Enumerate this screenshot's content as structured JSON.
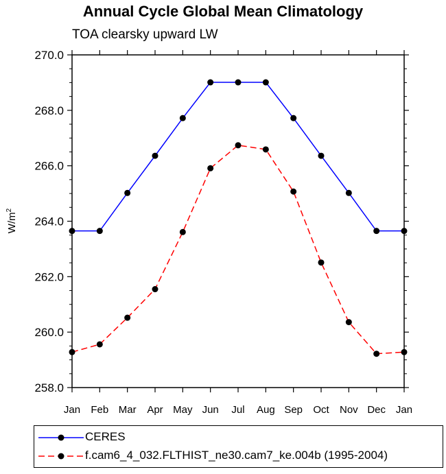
{
  "chart_data": {
    "type": "line",
    "title": "Annual Cycle Global Mean Climatology",
    "subtitle": "TOA clearsky upward LW",
    "ylabel": "W/m",
    "ylabel_sup": "2",
    "xlabel": "",
    "categories": [
      "Jan",
      "Feb",
      "Mar",
      "Apr",
      "May",
      "Jun",
      "Jul",
      "Aug",
      "Sep",
      "Oct",
      "Nov",
      "Dec",
      "Jan"
    ],
    "ylim": [
      258.0,
      270.0
    ],
    "yticks": [
      "258.0",
      "260.0",
      "262.0",
      "264.0",
      "266.0",
      "268.0",
      "270.0"
    ],
    "grid": false,
    "legend_position": "bottom",
    "series": [
      {
        "name": "CERES",
        "color": "#0000ff",
        "dash": "solid",
        "values": [
          263.65,
          263.65,
          265.02,
          266.36,
          267.72,
          269.01,
          269.01,
          269.01,
          267.72,
          266.36,
          265.02,
          263.65,
          263.65
        ]
      },
      {
        "name": "f.cam6_4_032.FLTHIST_ne30.cam7_ke.004b (1995-2004)",
        "color": "#ff0000",
        "dash": "dashed",
        "values": [
          259.28,
          259.56,
          260.52,
          261.55,
          263.61,
          265.91,
          266.74,
          266.59,
          265.07,
          262.51,
          260.36,
          259.22,
          259.28
        ]
      }
    ]
  }
}
